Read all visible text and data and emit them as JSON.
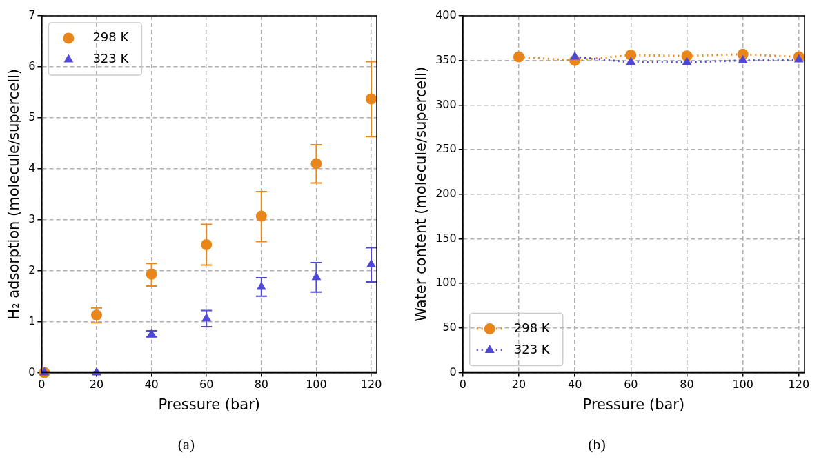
{
  "chart_data": [
    {
      "type": "scatter",
      "xlabel": "Pressure (bar)",
      "ylabel": "H₂ adsorption (molecule/supercell)",
      "xlim": [
        0,
        122
      ],
      "xticks": [
        0,
        20,
        40,
        60,
        80,
        100,
        120
      ],
      "ylim": [
        0,
        7
      ],
      "yticks": [
        0,
        1,
        2,
        3,
        4,
        5,
        6,
        7
      ],
      "grid": true,
      "legend": "top left",
      "annotations": [
        "(a)"
      ],
      "series": [
        {
          "name": "298 K",
          "color": "#e8861c",
          "marker": "circle",
          "x": [
            1,
            20,
            40,
            60,
            80,
            100,
            120
          ],
          "values": [
            0,
            1.13,
            1.93,
            2.51,
            3.07,
            4.1,
            5.37
          ],
          "errors": [
            null,
            [
              0.98,
              1.27
            ],
            [
              1.7,
              2.14
            ],
            [
              2.11,
              2.91
            ],
            [
              2.57,
              3.55
            ],
            [
              3.72,
              4.47
            ],
            [
              4.63,
              6.1
            ]
          ]
        },
        {
          "name": "323 K",
          "color": "#5048d6",
          "marker": "triangle",
          "x": [
            1,
            20,
            40,
            60,
            80,
            100,
            120
          ],
          "values": [
            0,
            0,
            0.75,
            1.06,
            1.68,
            1.87,
            2.12
          ],
          "errors": [
            null,
            null,
            [
              0.7,
              0.82
            ],
            [
              0.9,
              1.22
            ],
            [
              1.5,
              1.86
            ],
            [
              1.58,
              2.16
            ],
            [
              1.78,
              2.45
            ]
          ]
        }
      ]
    },
    {
      "type": "line",
      "xlabel": "Pressure (bar)",
      "ylabel": "Water content (molecule/supercell)",
      "xlim": [
        0,
        122
      ],
      "xticks": [
        0,
        20,
        40,
        60,
        80,
        100,
        120
      ],
      "ylim": [
        0,
        400
      ],
      "yticks": [
        0,
        50,
        100,
        150,
        200,
        250,
        300,
        350,
        400
      ],
      "grid": true,
      "legend": "bottom left",
      "line_style": "dotted",
      "annotations": [
        "(b)"
      ],
      "series": [
        {
          "name": "298 K",
          "color": "#e8861c",
          "marker": "circle",
          "x": [
            20,
            40,
            60,
            80,
            100,
            120
          ],
          "values": [
            354,
            350,
            356,
            355,
            357,
            354
          ]
        },
        {
          "name": "323 K",
          "color": "#5048d6",
          "marker": "triangle",
          "x": [
            40,
            60,
            80,
            100,
            120
          ],
          "values": [
            354,
            348,
            348,
            350,
            351
          ]
        }
      ]
    }
  ]
}
